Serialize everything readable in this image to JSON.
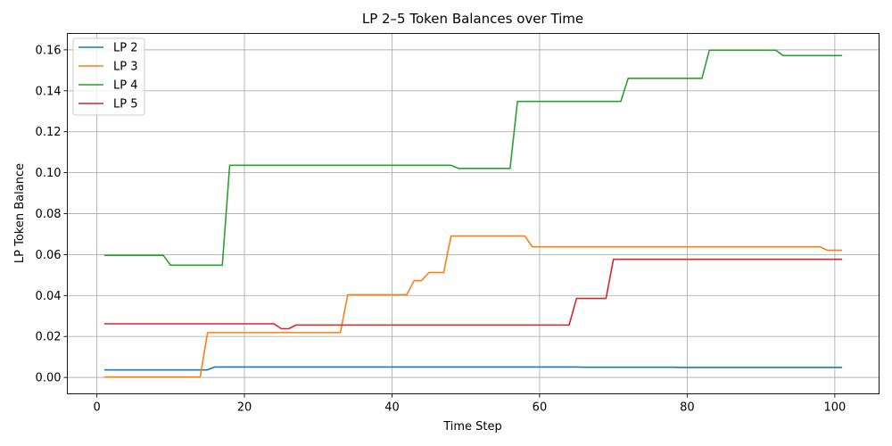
{
  "chart_data": {
    "type": "line",
    "title": "LP 2–5 Token Balances over Time",
    "xlabel": "Time Step",
    "ylabel": "LP Token Balance",
    "xlim": [
      -4,
      106
    ],
    "ylim": [
      -0.008,
      0.168
    ],
    "xticks": [
      0,
      20,
      40,
      60,
      80,
      100
    ],
    "yticks": [
      0.0,
      0.02,
      0.04,
      0.06,
      0.08,
      0.1,
      0.12,
      0.14,
      0.16
    ],
    "ytick_labels": [
      "0.00",
      "0.02",
      "0.04",
      "0.06",
      "0.08",
      "0.10",
      "0.12",
      "0.14",
      "0.16"
    ],
    "grid": true,
    "legend_position": "top-left",
    "series": [
      {
        "name": "LP 2",
        "color": "#1f77b4",
        "points": [
          [
            1,
            0.0037
          ],
          [
            15,
            0.0037
          ],
          [
            16,
            0.0051
          ],
          [
            65,
            0.0051
          ],
          [
            66,
            0.005
          ],
          [
            78,
            0.005
          ],
          [
            79,
            0.0049
          ],
          [
            101,
            0.0049
          ]
        ]
      },
      {
        "name": "LP 3",
        "color": "#ff7f0e",
        "points": [
          [
            1,
            0.0002
          ],
          [
            14,
            0.0002
          ],
          [
            15,
            0.0219
          ],
          [
            33,
            0.0219
          ],
          [
            34,
            0.0404
          ],
          [
            42,
            0.0404
          ],
          [
            43,
            0.0473
          ],
          [
            44,
            0.0473
          ],
          [
            45,
            0.0512
          ],
          [
            47,
            0.0512
          ],
          [
            48,
            0.0691
          ],
          [
            58,
            0.0691
          ],
          [
            59,
            0.0638
          ],
          [
            98,
            0.0638
          ],
          [
            99,
            0.0621
          ],
          [
            101,
            0.0621
          ]
        ]
      },
      {
        "name": "LP 4",
        "color": "#2ca02c",
        "points": [
          [
            1,
            0.0596
          ],
          [
            9,
            0.0596
          ],
          [
            10,
            0.0548
          ],
          [
            17,
            0.0548
          ],
          [
            18,
            0.1036
          ],
          [
            48,
            0.1036
          ],
          [
            49,
            0.1021
          ],
          [
            56,
            0.1021
          ],
          [
            57,
            0.1348
          ],
          [
            71,
            0.1348
          ],
          [
            72,
            0.1461
          ],
          [
            82,
            0.1461
          ],
          [
            83,
            0.1598
          ],
          [
            92,
            0.1598
          ],
          [
            93,
            0.1572
          ],
          [
            101,
            0.1572
          ]
        ]
      },
      {
        "name": "LP 5",
        "color": "#d62728",
        "points": [
          [
            1,
            0.0262
          ],
          [
            24,
            0.0262
          ],
          [
            25,
            0.0238
          ],
          [
            26,
            0.0238
          ],
          [
            27,
            0.0256
          ],
          [
            64,
            0.0256
          ],
          [
            65,
            0.0386
          ],
          [
            69,
            0.0386
          ],
          [
            70,
            0.0577
          ],
          [
            101,
            0.0577
          ]
        ]
      }
    ]
  }
}
